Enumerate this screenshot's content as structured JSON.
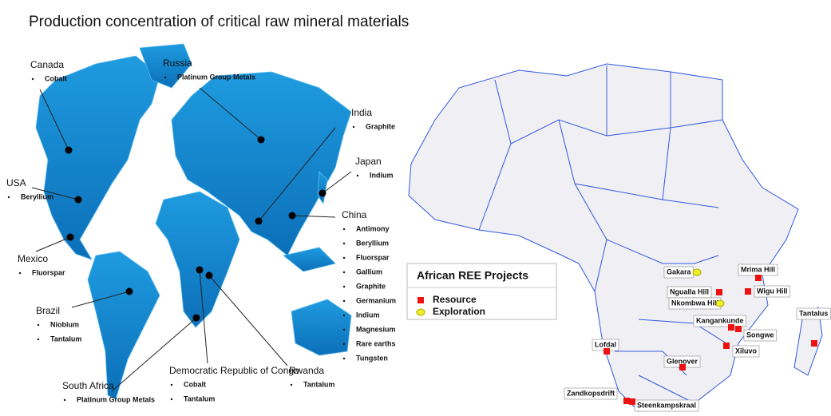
{
  "title": "Production concentration of critical raw mineral materials",
  "world_map": {
    "countries": [
      {
        "name": "Canada",
        "minerals": [
          "Cobalt"
        ]
      },
      {
        "name": "Russia",
        "minerals": [
          "Platinum Group Metals"
        ]
      },
      {
        "name": "India",
        "minerals": [
          "Graphite"
        ]
      },
      {
        "name": "Japan",
        "minerals": [
          "Indium"
        ]
      },
      {
        "name": "USA",
        "minerals": [
          "Beryllium"
        ]
      },
      {
        "name": "China",
        "minerals": [
          "Antimony",
          "Beryllium",
          "Fluorspar",
          "Gallium",
          "Graphite",
          "Germanium",
          "Indium",
          "Magnesium",
          "Rare earths",
          "Tungsten"
        ]
      },
      {
        "name": "Mexico",
        "minerals": [
          "Fluorspar"
        ]
      },
      {
        "name": "Brazil",
        "minerals": [
          "Niobium",
          "Tantalum"
        ]
      },
      {
        "name": "South Africa",
        "minerals": [
          "Platinum Group Metals"
        ]
      },
      {
        "name": "Democratic Republic of Congo",
        "minerals": [
          "Cobalt",
          "Tantalum"
        ]
      },
      {
        "name": "Rwanda",
        "minerals": [
          "Tantalum"
        ]
      }
    ]
  },
  "africa_map": {
    "legend": {
      "title": "African REE Projects",
      "items": [
        {
          "label": "Resource",
          "color": "#ee1111",
          "projects": [
            "Mrima Hill",
            "Wigu Hill",
            "Ngualla Hill",
            "Kangankunde",
            "Songwe",
            "Tantalus",
            "Xiluvo",
            "Lofdal",
            "Glenover",
            "Zandkopsdrift",
            "Steenkampskraal"
          ]
        },
        {
          "label": "Exploration",
          "color": "#eeee22",
          "projects": [
            "Gakara",
            "Nkombwa Hill"
          ]
        }
      ]
    }
  }
}
